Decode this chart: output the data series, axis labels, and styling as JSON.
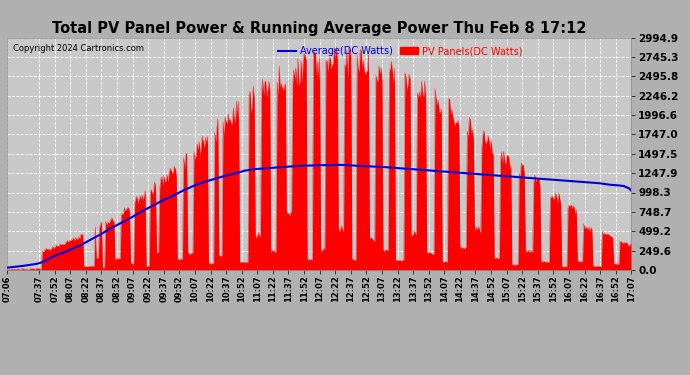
{
  "title": "Total PV Panel Power & Running Average Power Thu Feb 8 17:12",
  "copyright": "Copyright 2024 Cartronics.com",
  "legend_avg": "Average(DC Watts)",
  "legend_pv": "PV Panels(DC Watts)",
  "ylabel_values": [
    0.0,
    249.6,
    499.2,
    748.7,
    998.3,
    1247.9,
    1497.5,
    1747.0,
    1996.6,
    2246.2,
    2495.8,
    2745.3,
    2994.9
  ],
  "ymax": 2994.9,
  "ymin": 0.0,
  "bg_color": "#b0b0b0",
  "plot_bg_color": "#c8c8c8",
  "bar_color": "#ff0000",
  "avg_color": "#0000dd",
  "grid_color": "#ffffff",
  "time_labels": [
    "07:06",
    "07:37",
    "07:52",
    "08:07",
    "08:22",
    "08:37",
    "08:52",
    "09:07",
    "09:22",
    "09:37",
    "09:52",
    "10:07",
    "10:22",
    "10:37",
    "10:52",
    "11:07",
    "11:22",
    "11:37",
    "11:52",
    "12:07",
    "12:22",
    "12:37",
    "12:52",
    "13:07",
    "13:22",
    "13:37",
    "13:52",
    "14:07",
    "14:22",
    "14:37",
    "14:52",
    "15:07",
    "15:22",
    "15:37",
    "15:52",
    "16:07",
    "16:22",
    "16:37",
    "16:52",
    "17:07"
  ],
  "avg_points": [
    [
      426,
      30
    ],
    [
      440,
      50
    ],
    [
      455,
      80
    ],
    [
      460,
      100
    ],
    [
      467,
      150
    ],
    [
      475,
      200
    ],
    [
      480,
      220
    ],
    [
      490,
      280
    ],
    [
      497,
      320
    ],
    [
      505,
      380
    ],
    [
      515,
      450
    ],
    [
      525,
      530
    ],
    [
      535,
      600
    ],
    [
      545,
      670
    ],
    [
      555,
      750
    ],
    [
      565,
      820
    ],
    [
      575,
      890
    ],
    [
      585,
      950
    ],
    [
      595,
      1020
    ],
    [
      605,
      1080
    ],
    [
      615,
      1130
    ],
    [
      625,
      1170
    ],
    [
      635,
      1210
    ],
    [
      645,
      1240
    ],
    [
      655,
      1280
    ],
    [
      665,
      1300
    ],
    [
      675,
      1310
    ],
    [
      685,
      1320
    ],
    [
      695,
      1330
    ],
    [
      705,
      1340
    ],
    [
      715,
      1345
    ],
    [
      725,
      1350
    ],
    [
      735,
      1350
    ],
    [
      745,
      1355
    ],
    [
      755,
      1350
    ],
    [
      765,
      1340
    ],
    [
      775,
      1335
    ],
    [
      785,
      1330
    ],
    [
      795,
      1320
    ],
    [
      805,
      1310
    ],
    [
      815,
      1300
    ],
    [
      825,
      1290
    ],
    [
      835,
      1280
    ],
    [
      845,
      1270
    ],
    [
      855,
      1260
    ],
    [
      865,
      1250
    ],
    [
      875,
      1240
    ],
    [
      885,
      1230
    ],
    [
      895,
      1220
    ],
    [
      905,
      1210
    ],
    [
      915,
      1200
    ],
    [
      925,
      1190
    ],
    [
      935,
      1180
    ],
    [
      945,
      1170
    ],
    [
      955,
      1160
    ],
    [
      965,
      1150
    ],
    [
      975,
      1140
    ],
    [
      985,
      1130
    ],
    [
      995,
      1120
    ],
    [
      1005,
      1100
    ],
    [
      1015,
      1090
    ],
    [
      1020,
      1080
    ],
    [
      1025,
      1050
    ],
    [
      1027,
      1020
    ]
  ]
}
